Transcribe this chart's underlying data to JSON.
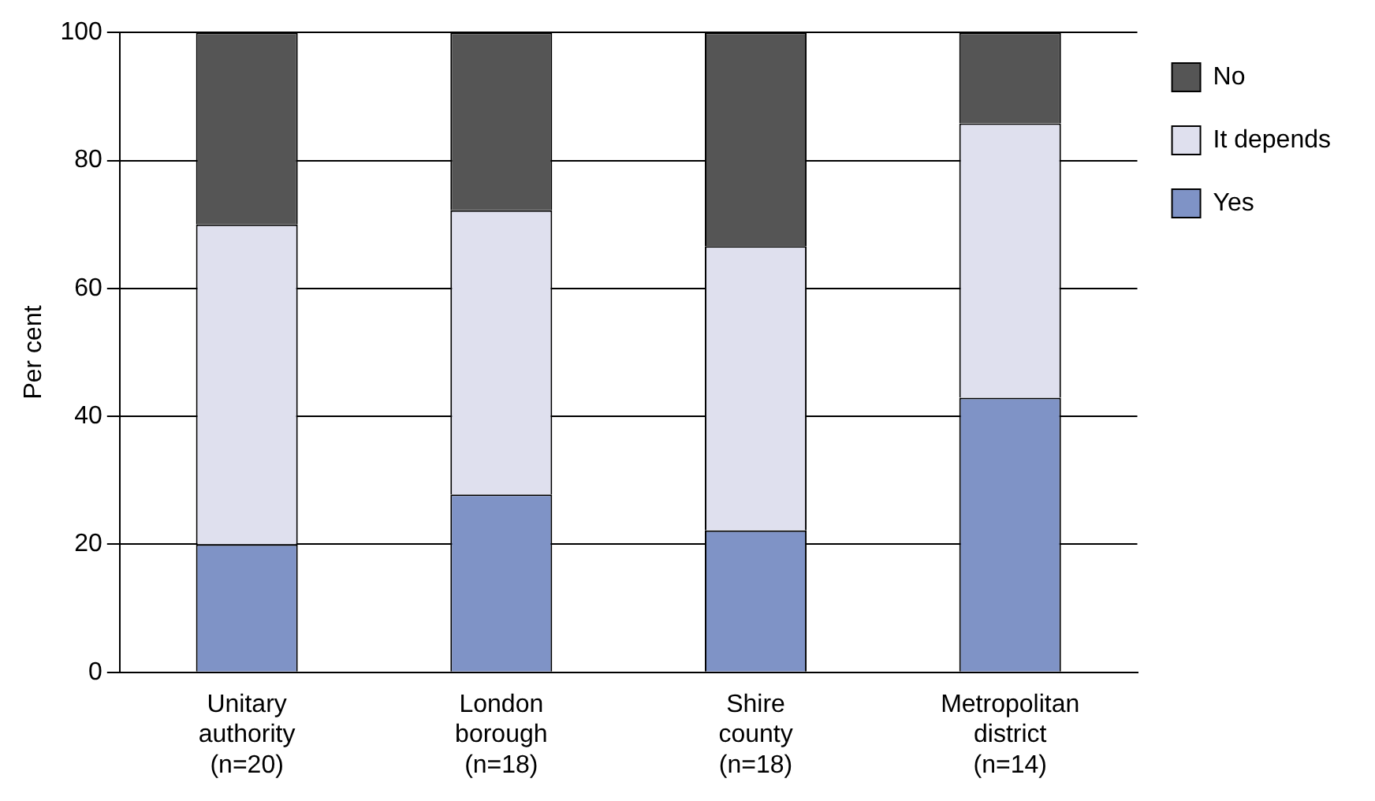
{
  "chart_data": {
    "type": "bar",
    "stacked": true,
    "ylabel": "Per cent",
    "categories": [
      "Unitary authority (n=20)",
      "London borough (n=18)",
      "Shire county (n=18)",
      "Metropolitan district (n=14)"
    ],
    "series": [
      {
        "name": "Yes",
        "color": "#7f93c6",
        "values": [
          20,
          27.8,
          22.2,
          42.9
        ]
      },
      {
        "name": "It depends",
        "color": "#dfe0ee",
        "values": [
          50,
          44.4,
          44.4,
          42.9
        ]
      },
      {
        "name": "No",
        "color": "#555555",
        "values": [
          30,
          27.8,
          33.4,
          14.2
        ]
      }
    ],
    "ylim": [
      0,
      100
    ],
    "yticks": [
      0,
      20,
      40,
      60,
      80,
      100
    ],
    "grid": "y",
    "legend": "top right"
  }
}
